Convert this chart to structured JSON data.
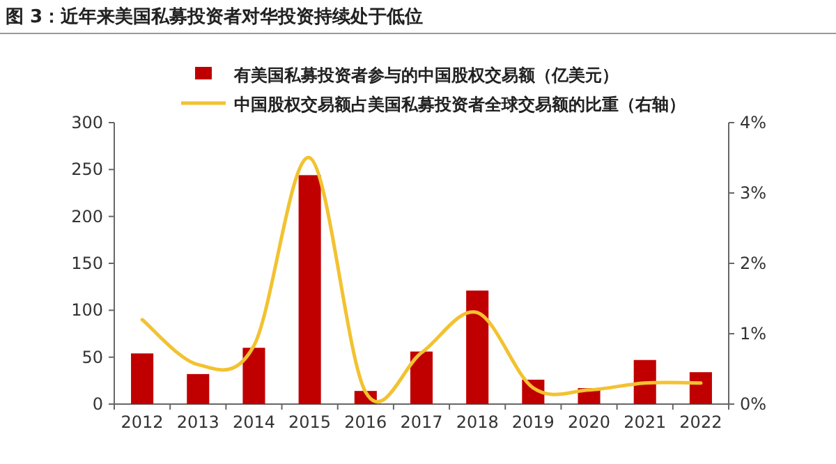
{
  "chart_data": {
    "type": "bar",
    "title": "图 3：近年来美国私募投资者对华投资持续处于低位",
    "categories": [
      "2012",
      "2013",
      "2014",
      "2015",
      "2016",
      "2017",
      "2018",
      "2019",
      "2020",
      "2021",
      "2022"
    ],
    "series": [
      {
        "name": "有美国私募投资者参与的中国股权交易额（亿美元）",
        "color": "#c00000",
        "values": [
          54,
          32,
          60,
          244,
          14,
          56,
          121,
          26,
          17,
          47,
          34
        ]
      },
      {
        "name": "中国股权交易额占美国私募投资者全球交易额的比重（右轴）",
        "type": "line",
        "axis": "y2",
        "color": "#f2c230",
        "values": [
          1.2,
          0.56,
          0.83,
          3.5,
          0.17,
          0.73,
          1.3,
          0.23,
          0.2,
          0.3,
          0.3
        ]
      }
    ],
    "ylim": [
      0,
      300
    ],
    "yticks": [
      0,
      50,
      100,
      150,
      200,
      250,
      300
    ],
    "y2lim": [
      0,
      4
    ],
    "y2ticks": [
      {
        "value": 0,
        "label": "0%"
      },
      {
        "value": 1,
        "label": "1%"
      },
      {
        "value": 2,
        "label": "2%"
      },
      {
        "value": 3,
        "label": "3%"
      },
      {
        "value": 4,
        "label": "4%"
      }
    ],
    "legend": "top",
    "grid": false,
    "marker": "none",
    "line_style": "solid"
  }
}
